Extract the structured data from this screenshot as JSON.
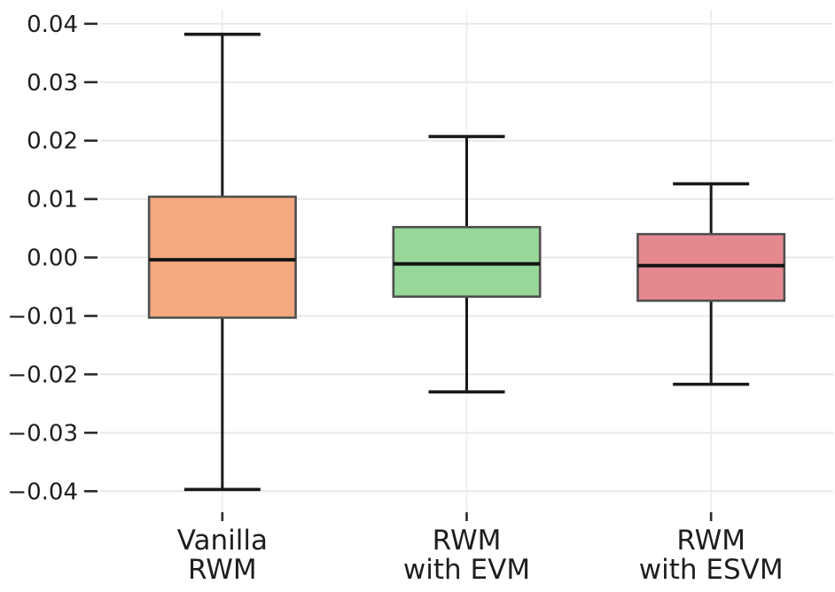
{
  "chart_data": {
    "type": "box",
    "title": "",
    "categories": [
      "Vanilla\nRWM",
      "RWM\nwith EVM",
      "RWM\nwith ESVM"
    ],
    "series": [
      {
        "name": "Vanilla RWM",
        "whisker_low": -0.0397,
        "q1": -0.0103,
        "median": -0.0004,
        "q3": 0.0104,
        "whisker_high": 0.0382,
        "fill_color": "#F5A97E"
      },
      {
        "name": "RWM with EVM",
        "whisker_low": -0.023,
        "q1": -0.0067,
        "median": -0.0011,
        "q3": 0.0052,
        "whisker_high": 0.0207,
        "fill_color": "#97D798"
      },
      {
        "name": "RWM with ESVM",
        "whisker_low": -0.0217,
        "q1": -0.0074,
        "median": -0.0014,
        "q3": 0.004,
        "whisker_high": 0.0126,
        "fill_color": "#E5898E"
      }
    ],
    "yticks": [
      0.04,
      0.03,
      0.02,
      0.01,
      0.0,
      -0.01,
      -0.02,
      -0.03,
      -0.04
    ],
    "ytick_labels": [
      "0.04",
      "0.03",
      "0.02",
      "0.01",
      "0.00",
      "−0.01",
      "−0.02",
      "−0.03",
      "−0.04"
    ],
    "ylim": [
      -0.0436,
      0.0424
    ],
    "xlabel": "",
    "ylabel": "",
    "grid": "both",
    "legend": "none",
    "colors": {
      "box_edge": "#4F4F4F",
      "whisker": "#1A1A1A",
      "median": "#141414",
      "gridline_h": "#E8E8E8",
      "gridline_v": "#ECECEC",
      "tick": "#2B2B2B",
      "text": "#1E1E1E",
      "background": "#FFFFFF"
    }
  }
}
